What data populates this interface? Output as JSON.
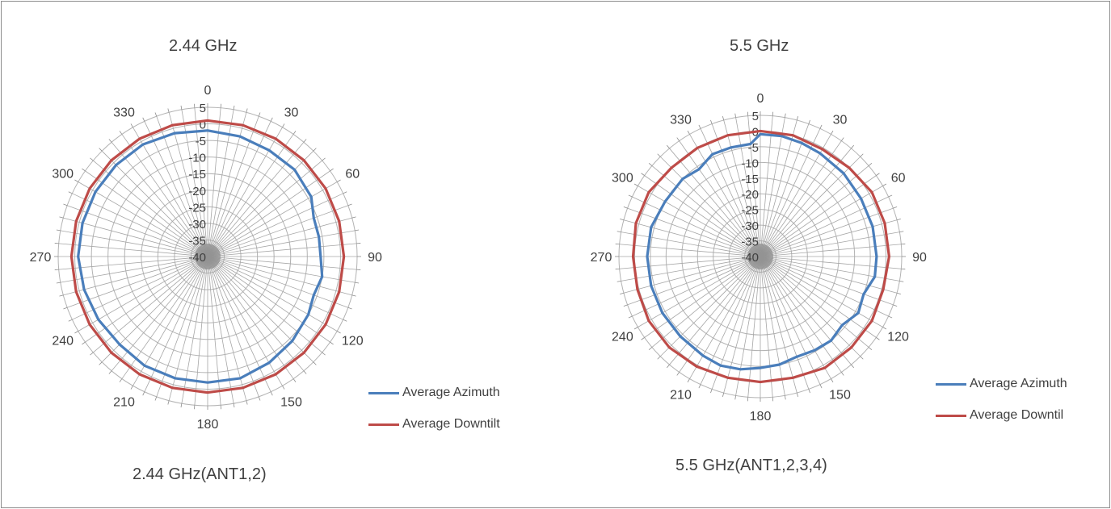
{
  "chart_data": [
    {
      "type": "polar-line",
      "title": "2.44 GHz",
      "caption": "2.44 GHz(ANT1,2)",
      "angle_ticks": [
        "0",
        "30",
        "60",
        "90",
        "120",
        "150",
        "180",
        "210",
        "240",
        "270",
        "300",
        "330"
      ],
      "radial_ticks": [
        "5",
        "0",
        "-5",
        "-10",
        "-15",
        "-20",
        "-25",
        "-30",
        "-35",
        "-40"
      ],
      "rlim": [
        -40,
        5
      ],
      "legend_position": "right",
      "grid": true,
      "series": [
        {
          "name": "Average Azimuth",
          "color": "#4a7ebb",
          "angles": [
            0,
            15,
            30,
            45,
            60,
            70,
            80,
            90,
            100,
            110,
            120,
            135,
            150,
            165,
            180,
            195,
            210,
            225,
            240,
            255,
            270,
            285,
            300,
            315,
            330,
            345,
            360
          ],
          "values": [
            -2,
            -2.5,
            -3,
            -3,
            -4,
            -6,
            -6,
            -6,
            -5,
            -6,
            -5,
            -4,
            -3,
            -2,
            -2,
            -2,
            -2,
            -2.5,
            -2,
            -1.5,
            -1,
            -1,
            -1,
            -1,
            -1,
            -1.5,
            -2
          ]
        },
        {
          "name": "Average Downtilt",
          "color": "#be4b48",
          "angles": [
            0,
            15,
            30,
            45,
            60,
            75,
            90,
            105,
            120,
            135,
            150,
            165,
            180,
            195,
            210,
            225,
            240,
            255,
            270,
            285,
            300,
            315,
            330,
            345,
            360
          ],
          "values": [
            1,
            1,
            1,
            1,
            1,
            1,
            1,
            1,
            1,
            1,
            1,
            1,
            1,
            1,
            1,
            1,
            1,
            1,
            1,
            1,
            1,
            1,
            1,
            1,
            1
          ]
        }
      ]
    },
    {
      "type": "polar-line",
      "title": "5.5 GHz",
      "caption": "5.5 GHz(ANT1,2,3,4)",
      "angle_ticks": [
        "0",
        "30",
        "60",
        "90",
        "120",
        "150",
        "180",
        "210",
        "240",
        "270",
        "300",
        "330"
      ],
      "radial_ticks": [
        "5",
        "0",
        "-5",
        "-10",
        "-15",
        "-20",
        "-25",
        "-30",
        "-35",
        "-40"
      ],
      "rlim": [
        -40,
        5
      ],
      "legend_position": "right",
      "grid": true,
      "series": [
        {
          "name": "Average Azimuth",
          "color": "#4a7ebb",
          "angles": [
            0,
            10,
            20,
            30,
            45,
            60,
            75,
            90,
            100,
            110,
            120,
            130,
            140,
            150,
            160,
            170,
            180,
            190,
            200,
            210,
            225,
            240,
            255,
            270,
            285,
            300,
            315,
            325,
            335,
            345,
            355,
            360
          ],
          "values": [
            -1,
            -1,
            -1.5,
            -2,
            -2.5,
            -3,
            -3,
            -3,
            -3,
            -5,
            -4,
            -6,
            -5,
            -5.5,
            -6,
            -5,
            -4.5,
            -3.5,
            -3,
            -3.5,
            -4,
            -4,
            -4,
            -4,
            -4,
            -5,
            -5,
            -6,
            -4,
            -4,
            -4,
            -1
          ]
        },
        {
          "name": "Average Downtil",
          "color": "#be4b48",
          "angles": [
            0,
            15,
            30,
            45,
            60,
            75,
            90,
            105,
            120,
            135,
            150,
            165,
            180,
            195,
            210,
            225,
            240,
            255,
            270,
            285,
            300,
            315,
            330,
            345,
            360
          ],
          "values": [
            0,
            0,
            -0.5,
            0,
            1,
            1,
            1,
            0.5,
            1,
            1,
            1,
            0,
            0,
            0,
            0.5,
            1,
            1,
            0.5,
            0.5,
            1,
            1,
            0,
            0,
            0,
            0
          ]
        }
      ]
    }
  ]
}
